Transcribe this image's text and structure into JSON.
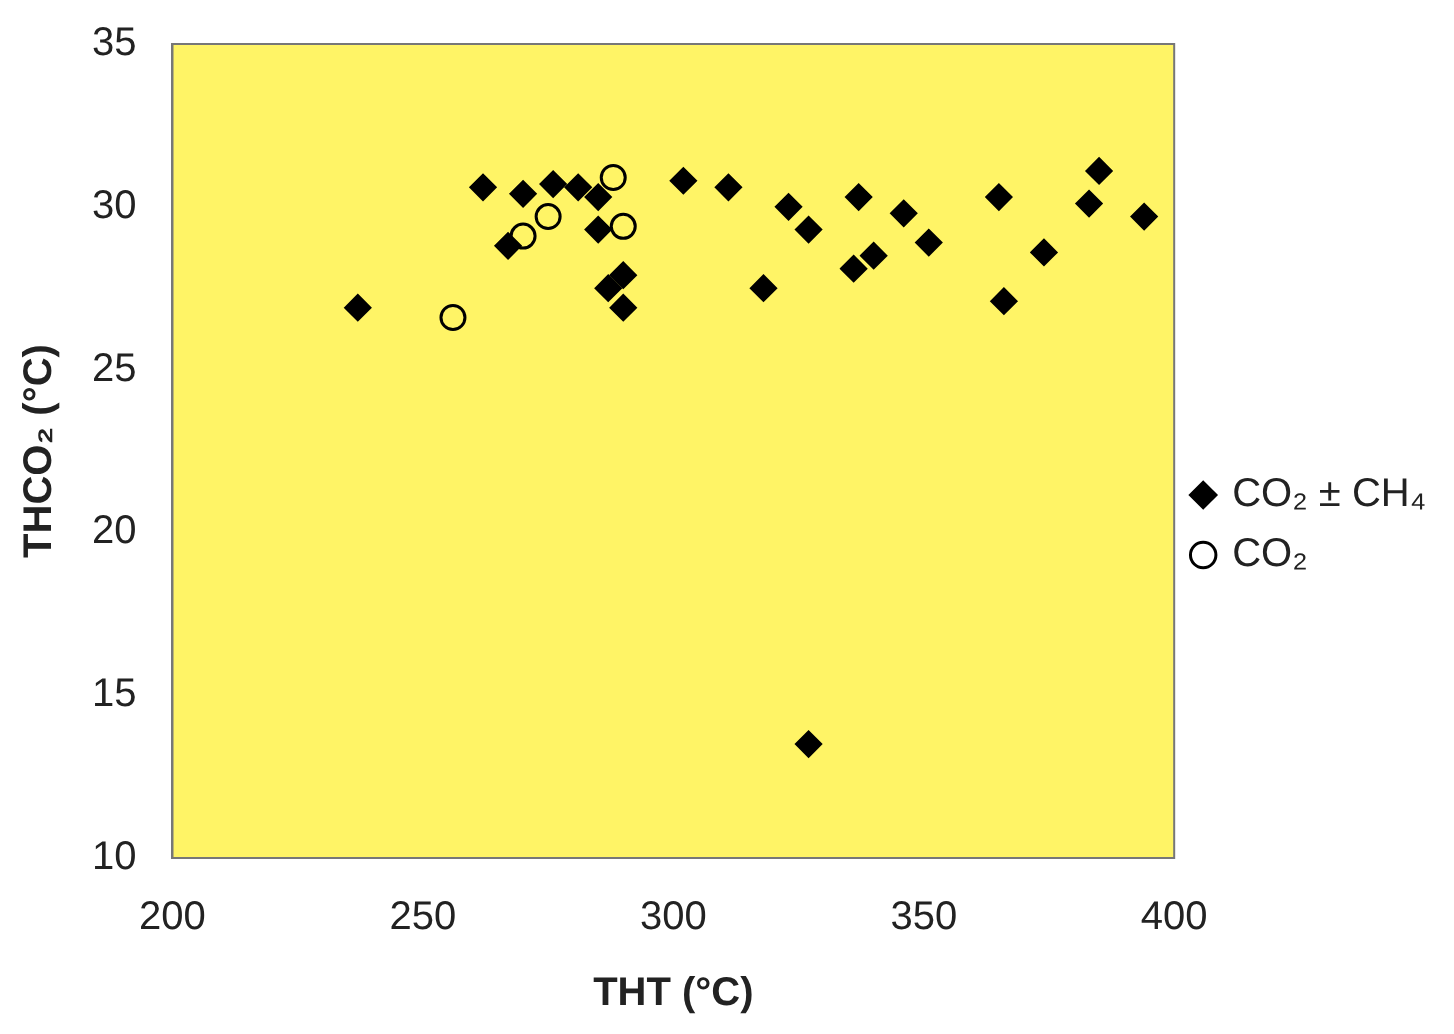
{
  "chart_data": {
    "type": "scatter",
    "xlabel": "THT (°C)",
    "ylabel": "THCO₂ (°C)",
    "xlim": [
      200,
      400
    ],
    "xticks": [
      200,
      250,
      300,
      350,
      400
    ],
    "ylim": [
      10,
      35
    ],
    "yticks": [
      10,
      15,
      20,
      25,
      30,
      35
    ],
    "grid": false,
    "legend": "right",
    "series": [
      {
        "name": "CO₂ ± CH₄",
        "color": "#000000",
        "marker": "diamond",
        "x": [
          262,
          270,
          276,
          281,
          285,
          285,
          267,
          290,
          287,
          290,
          237,
          302,
          311,
          323,
          327,
          318,
          337,
          346,
          351,
          340,
          336,
          365,
          366,
          374,
          383,
          385,
          394,
          327
        ],
        "values": [
          30.6,
          30.4,
          30.7,
          30.6,
          30.3,
          29.3,
          28.8,
          27.9,
          27.5,
          26.9,
          26.9,
          30.8,
          30.6,
          30.0,
          29.3,
          27.5,
          30.3,
          29.8,
          28.9,
          28.5,
          28.1,
          30.3,
          27.1,
          28.6,
          30.1,
          31.1,
          29.7,
          13.5
        ]
      },
      {
        "name": "CO₂",
        "color": "#000000",
        "marker": "circle",
        "x": [
          256,
          270,
          275,
          288,
          290
        ],
        "values": [
          26.6,
          29.1,
          29.7,
          30.9,
          29.4
        ]
      }
    ]
  }
}
